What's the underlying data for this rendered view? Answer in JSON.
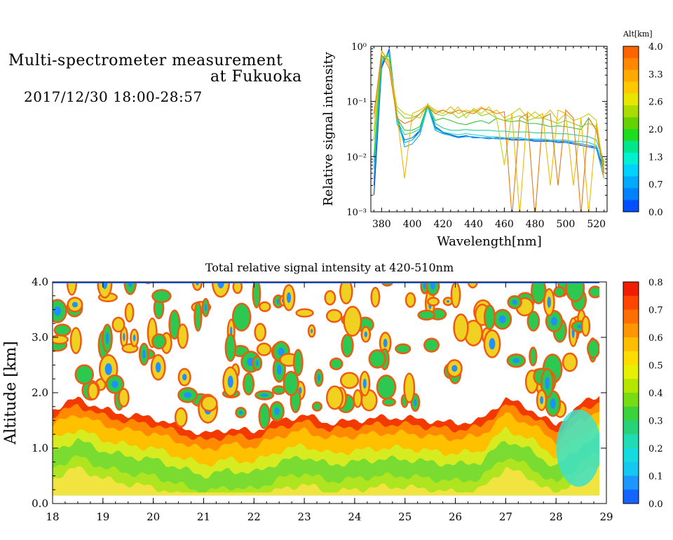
{
  "header": {
    "title_line1": "Multi-spectrometer measurement",
    "title_line2": "at Fukuoka",
    "datetime": "2017/12/30 18:00-28:57"
  },
  "chart_data": [
    {
      "type": "line",
      "name": "spectra",
      "xlabel": "Wavelength[nm]",
      "ylabel": "Relative signal intensity",
      "xlim": [
        373,
        527
      ],
      "ylim": [
        0.001,
        1
      ],
      "yscale": "log",
      "xticks": [
        "380",
        "400",
        "420",
        "440",
        "460",
        "480",
        "500",
        "520"
      ],
      "yticks": [
        "10⁻³",
        "10⁻²",
        "10⁻¹",
        "10⁰"
      ],
      "x": [
        375,
        380,
        385,
        390,
        395,
        400,
        405,
        410,
        415,
        420,
        425,
        430,
        435,
        440,
        445,
        450,
        455,
        460,
        465,
        470,
        475,
        480,
        485,
        490,
        495,
        500,
        505,
        510,
        515,
        520,
        525
      ],
      "series": [
        {
          "color": "#0047d6",
          "alt": 0.0,
          "values": [
            0.002,
            0.4,
            0.9,
            0.05,
            0.018,
            0.02,
            0.03,
            0.09,
            0.035,
            0.028,
            0.025,
            0.022,
            0.024,
            0.022,
            0.022,
            0.022,
            0.021,
            0.021,
            0.02,
            0.02,
            0.02,
            0.019,
            0.019,
            0.019,
            0.018,
            0.018,
            0.017,
            0.016,
            0.015,
            0.014,
            0.006
          ]
        },
        {
          "color": "#0a6fe0",
          "alt": 0.3,
          "values": [
            0.003,
            0.45,
            0.85,
            0.045,
            0.02,
            0.022,
            0.03,
            0.085,
            0.033,
            0.027,
            0.025,
            0.023,
            0.024,
            0.022,
            0.022,
            0.021,
            0.022,
            0.021,
            0.021,
            0.02,
            0.021,
            0.02,
            0.02,
            0.019,
            0.019,
            0.019,
            0.018,
            0.017,
            0.016,
            0.015,
            0.005
          ]
        },
        {
          "color": "#18a0ee",
          "alt": 0.7,
          "values": [
            0.004,
            0.5,
            0.8,
            0.06,
            0.015,
            0.017,
            0.025,
            0.08,
            0.03,
            0.026,
            0.024,
            0.022,
            0.023,
            0.023,
            0.022,
            0.022,
            0.021,
            0.022,
            0.021,
            0.021,
            0.02,
            0.02,
            0.02,
            0.02,
            0.019,
            0.018,
            0.018,
            0.017,
            0.016,
            0.014,
            0.004
          ]
        },
        {
          "color": "#14d2d8",
          "alt": 1.0,
          "values": [
            0.006,
            0.55,
            0.75,
            0.04,
            0.018,
            0.02,
            0.028,
            0.08,
            0.032,
            0.028,
            0.026,
            0.025,
            0.026,
            0.025,
            0.024,
            0.023,
            0.023,
            0.022,
            0.022,
            0.022,
            0.021,
            0.021,
            0.021,
            0.02,
            0.02,
            0.02,
            0.019,
            0.019,
            0.018,
            0.016,
            0.007
          ]
        },
        {
          "color": "#1ecf98",
          "alt": 1.3,
          "values": [
            0.008,
            0.6,
            0.7,
            0.045,
            0.025,
            0.027,
            0.032,
            0.085,
            0.04,
            0.033,
            0.03,
            0.03,
            0.031,
            0.03,
            0.03,
            0.03,
            0.029,
            0.029,
            0.028,
            0.028,
            0.028,
            0.027,
            0.027,
            0.027,
            0.026,
            0.026,
            0.025,
            0.024,
            0.023,
            0.02,
            0.008
          ]
        },
        {
          "color": "#2ec23a",
          "alt": 2.0,
          "values": [
            0.01,
            0.65,
            0.65,
            0.05,
            0.03,
            0.03,
            0.035,
            0.09,
            0.045,
            0.05,
            0.045,
            0.04,
            0.038,
            0.042,
            0.045,
            0.04,
            0.05,
            0.045,
            0.043,
            0.045,
            0.04,
            0.04,
            0.038,
            0.035,
            0.036,
            0.035,
            0.033,
            0.031,
            0.05,
            0.03,
            0.007
          ]
        },
        {
          "color": "#8bd21e",
          "alt": 2.6,
          "values": [
            0.02,
            0.8,
            0.55,
            0.07,
            0.05,
            0.05,
            0.06,
            0.085,
            0.06,
            0.055,
            0.065,
            0.05,
            0.06,
            0.07,
            0.055,
            0.06,
            0.05,
            0.045,
            0.05,
            0.055,
            0.045,
            0.05,
            0.05,
            0.045,
            0.04,
            0.045,
            0.04,
            0.035,
            0.04,
            0.035,
            0.006
          ]
        },
        {
          "color": "#c8cc1a",
          "alt": 3.0,
          "values": [
            0.03,
            0.85,
            0.5,
            0.08,
            0.06,
            0.055,
            0.05,
            0.09,
            0.065,
            0.07,
            0.06,
            0.08,
            0.05,
            0.075,
            0.06,
            0.08,
            0.05,
            0.007,
            0.06,
            0.075,
            0.05,
            0.065,
            0.05,
            0.07,
            0.045,
            0.06,
            0.045,
            0.05,
            0.06,
            0.045,
            0.005
          ]
        },
        {
          "color": "#f0b800",
          "alt": 3.3,
          "values": [
            0.05,
            0.85,
            0.45,
            0.06,
            0.004,
            0.06,
            0.07,
            0.085,
            0.07,
            0.06,
            0.08,
            0.06,
            0.07,
            0.065,
            0.08,
            0.06,
            0.07,
            0.05,
            0.06,
            0.0009,
            0.065,
            0.05,
            0.06,
            0.003,
            0.07,
            0.06,
            0.003,
            0.05,
            0.0009,
            0.04,
            0.004
          ]
        },
        {
          "color": "#e8780c",
          "alt": 3.7,
          "values": [
            0.06,
            0.7,
            0.4,
            0.05,
            0.04,
            0.045,
            0.06,
            0.08,
            0.06,
            0.07,
            0.06,
            0.07,
            0.065,
            0.06,
            0.075,
            0.07,
            0.06,
            0.065,
            0.0008,
            0.05,
            0.06,
            0.0008,
            0.05,
            0.06,
            0.003,
            0.07,
            0.05,
            0.0009,
            0.05,
            0.03,
            0.005
          ]
        }
      ],
      "colorbar": {
        "title": "Alt[km]",
        "labels": [
          "4.0",
          "3.3",
          "2.6",
          "2.0",
          "1.3",
          "0.7",
          "0.0"
        ],
        "colors": [
          "#ff6400",
          "#ff8800",
          "#ffaa00",
          "#ffc800",
          "#e6e600",
          "#aadc00",
          "#64d200",
          "#1edc1e",
          "#00e68c",
          "#00f0d2",
          "#00d2ff",
          "#00aaff",
          "#0082ff",
          "#0050ff"
        ]
      }
    },
    {
      "type": "heatmap",
      "name": "altitude-time",
      "title": "Total relative signal intensity at 420-510nm",
      "ylabel": "Altitude [km]",
      "xlim": [
        18,
        29
      ],
      "ylim": [
        0,
        4
      ],
      "xticks": [
        "18",
        "19",
        "20",
        "21",
        "22",
        "23",
        "24",
        "25",
        "26",
        "27",
        "28",
        "29"
      ],
      "yticks": [
        "0.0",
        "1.0",
        "2.0",
        "3.0",
        "4.0"
      ],
      "data_end_hour": 28.95,
      "boundary_layer_top_km": {
        "hours": [
          18.0,
          18.5,
          19.0,
          19.5,
          20.0,
          20.5,
          21.0,
          21.5,
          22.0,
          22.5,
          23.0,
          23.5,
          24.0,
          24.5,
          25.0,
          25.5,
          26.0,
          26.5,
          27.0,
          27.5,
          28.0,
          28.5,
          28.95
        ],
        "values": [
          1.7,
          1.9,
          1.7,
          1.6,
          1.55,
          1.4,
          1.25,
          1.35,
          1.3,
          1.5,
          1.6,
          1.45,
          1.5,
          1.55,
          1.55,
          1.5,
          1.45,
          1.5,
          1.9,
          1.7,
          1.4,
          1.8,
          2.0
        ]
      },
      "colorbar": {
        "labels": [
          "0.8",
          "0.7",
          "0.6",
          "0.5",
          "0.4",
          "0.3",
          "0.2",
          "0.1",
          "0.0"
        ],
        "colors": [
          "#f01e00",
          "#ff4600",
          "#ff6e00",
          "#ff9600",
          "#ffbe00",
          "#ffdc00",
          "#e6f000",
          "#b4e600",
          "#78dc14",
          "#3cd23c",
          "#28d278",
          "#1edcb4",
          "#14dcdc",
          "#14c8f0",
          "#1e96ff",
          "#1464ff"
        ]
      }
    }
  ]
}
